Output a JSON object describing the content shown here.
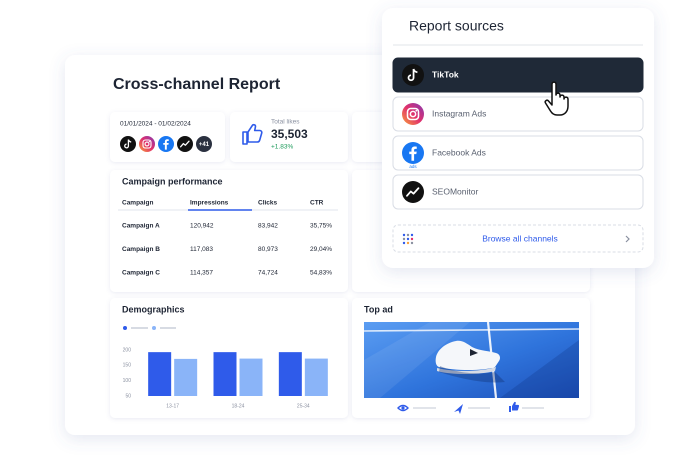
{
  "report": {
    "title": "Cross-channel Report",
    "date_range": "01/01/2024 - 01/02/2024",
    "more_channels": "+41",
    "likes_label": "Total likes",
    "likes_value": "35,503",
    "likes_change": "+1.83%"
  },
  "campaign_performance": {
    "title": "Campaign performance",
    "columns": [
      "Campaign",
      "Impressions",
      "Clicks",
      "CTR"
    ],
    "rows": [
      [
        "Campaign A",
        "120,942",
        "83,942",
        "35,75%"
      ],
      [
        "Campaign B",
        "117,083",
        "80,973",
        "29,04%"
      ],
      [
        "Campaign C",
        "114,357",
        "74,724",
        "54,83%"
      ]
    ]
  },
  "demographics": {
    "title": "Demographics",
    "chart": {
      "type": "bar",
      "categories": [
        "13-17",
        "18-24",
        "25-34"
      ],
      "series": [
        {
          "color": "#2f5bea",
          "values": [
            193,
            193,
            193
          ]
        },
        {
          "color": "#8ab4f8",
          "values": [
            171,
            172,
            172
          ]
        }
      ],
      "ylim": [
        50,
        200
      ],
      "yticks": [
        200,
        150,
        100,
        50
      ]
    }
  },
  "top_ad": {
    "title": "Top ad"
  },
  "sources": {
    "title": "Report sources",
    "items": [
      {
        "label": "TikTok"
      },
      {
        "label": "Instagram Ads"
      },
      {
        "label": "Facebook Ads",
        "badge": "ads"
      },
      {
        "label": "SEOMonitor"
      }
    ],
    "browse": "Browse all channels"
  }
}
